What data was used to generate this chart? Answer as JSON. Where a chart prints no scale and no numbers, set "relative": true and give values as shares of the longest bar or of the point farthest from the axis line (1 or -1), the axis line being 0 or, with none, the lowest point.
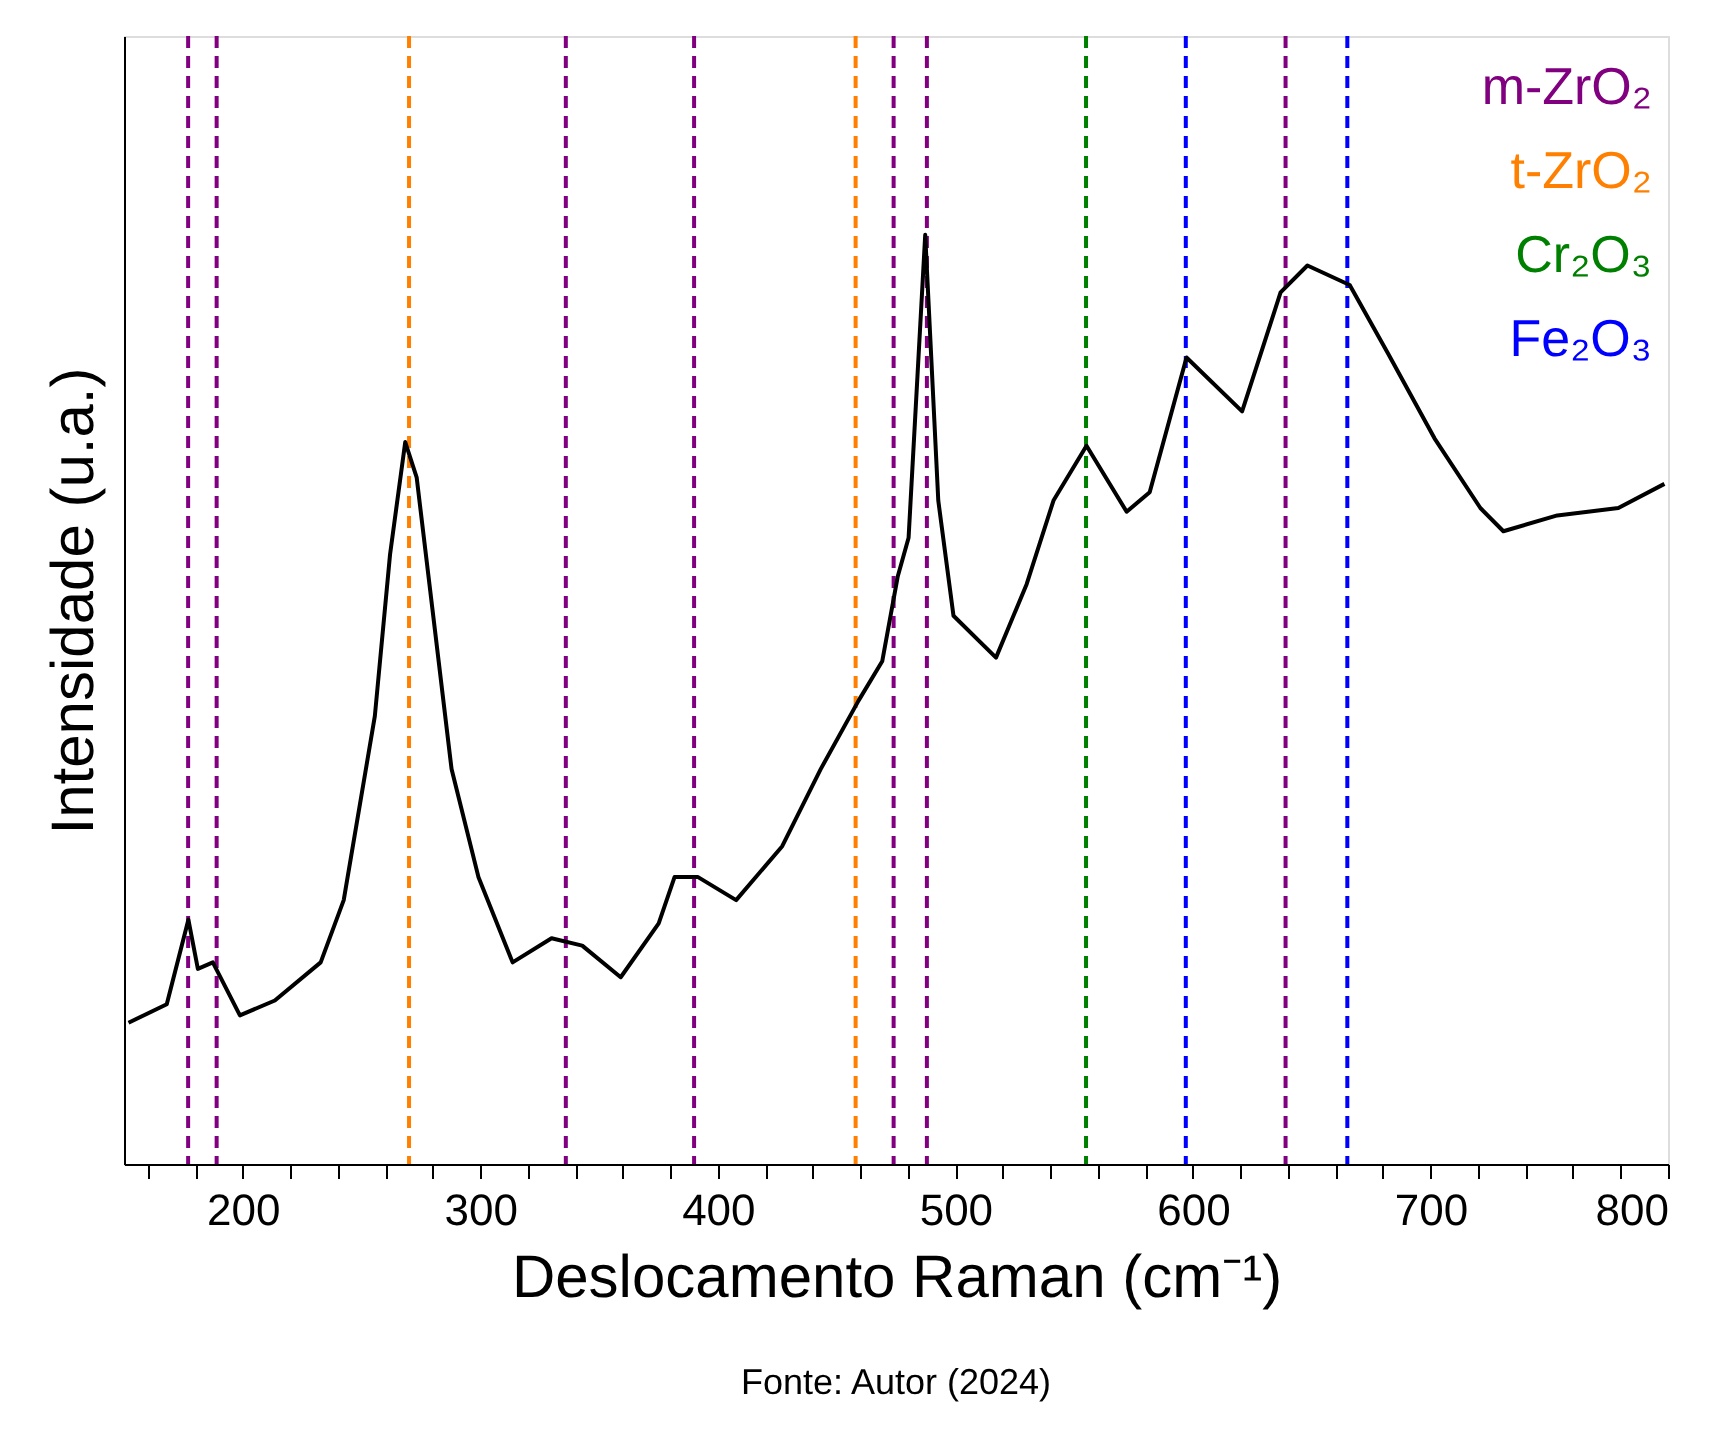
{
  "chart_data": {
    "type": "line",
    "relative": true,
    "xlabel": "Deslocamento Raman (cm⁻¹)",
    "ylabel": "Intensidade (u.a.)",
    "annotations": [
      "Fonte: Autor (2024)"
    ],
    "xlim": [
      150,
      800
    ],
    "xticks": [
      {
        "value": 160,
        "label": null
      },
      {
        "value": 180,
        "label": null
      },
      200,
      {
        "value": 220,
        "label": null
      },
      {
        "value": 240,
        "label": null
      },
      {
        "value": 260,
        "label": null
      },
      {
        "value": 280,
        "label": null
      },
      300,
      {
        "value": 320,
        "label": null
      },
      {
        "value": 340,
        "label": null
      },
      {
        "value": 360,
        "label": null
      },
      {
        "value": 380,
        "label": null
      },
      400,
      {
        "value": 420,
        "label": null
      },
      {
        "value": 440,
        "label": null
      },
      {
        "value": 460,
        "label": null
      },
      {
        "value": 480,
        "label": null
      },
      500,
      {
        "value": 520,
        "label": null
      },
      {
        "value": 540,
        "label": null
      },
      {
        "value": 560,
        "label": null
      },
      {
        "value": 580,
        "label": null
      },
      600,
      {
        "value": 620,
        "label": null
      },
      {
        "value": 640,
        "label": null
      },
      {
        "value": 660,
        "label": null
      },
      {
        "value": 680,
        "label": null
      },
      700,
      {
        "value": 720,
        "label": null
      },
      {
        "value": 740,
        "label": null
      },
      {
        "value": 760,
        "label": null
      },
      {
        "value": 780,
        "label": null
      },
      800
    ],
    "grid": false,
    "legend": "top right",
    "marker": "none",
    "line_style": "solid",
    "x": [
      151.9,
      168.0,
      177.1,
      181.1,
      187.4,
      198.8,
      213.5,
      232.8,
      242.5,
      255.6,
      262.0,
      268.4,
      273.2,
      279.8,
      287.9,
      299.2,
      313.6,
      330.0,
      342.9,
      359.1,
      375.1,
      381.8,
      391.5,
      407.7,
      427.1,
      443.3,
      459.3,
      469.2,
      475.7,
      480.3,
      487.3,
      492.8,
      499.2,
      517.1,
      530.0,
      541.3,
      555.2,
      572.1,
      581.8,
      597.3,
      620.7,
      636.9,
      648.2,
      666.0,
      682.2,
      701.7,
      721.0,
      730.7,
      753.4,
      779.1,
      798.5
    ],
    "series": [
      {
        "color": "#000000",
        "values": [
          0.152,
          0.172,
          0.263,
          0.21,
          0.217,
          0.16,
          0.176,
          0.217,
          0.284,
          0.482,
          0.656,
          0.777,
          0.739,
          0.598,
          0.425,
          0.309,
          0.217,
          0.243,
          0.235,
          0.201,
          0.259,
          0.309,
          0.309,
          0.284,
          0.342,
          0.425,
          0.499,
          0.541,
          0.632,
          0.674,
          1.0,
          0.714,
          0.59,
          0.545,
          0.624,
          0.714,
          0.773,
          0.702,
          0.723,
          0.868,
          0.81,
          0.938,
          0.967,
          0.946,
          0.872,
          0.781,
          0.706,
          0.681,
          0.698,
          0.706,
          0.732
        ]
      }
    ],
    "ref_lines": [
      {
        "axis": "x",
        "value": 177,
        "label": "m-ZrO₂",
        "color": "#800080",
        "line_style": "dashed"
      },
      {
        "axis": "x",
        "value": 189,
        "color": "#800080",
        "line_style": "dashed"
      },
      {
        "axis": "x",
        "value": 336,
        "color": "#800080",
        "line_style": "dashed"
      },
      {
        "axis": "x",
        "value": 390,
        "color": "#800080",
        "line_style": "dashed"
      },
      {
        "axis": "x",
        "value": 474,
        "color": "#800080",
        "line_style": "dashed"
      },
      {
        "axis": "x",
        "value": 488,
        "color": "#800080",
        "line_style": "dashed"
      },
      {
        "axis": "x",
        "value": 639,
        "color": "#800080",
        "line_style": "dashed"
      },
      {
        "axis": "x",
        "value": 270,
        "label": "t-ZrO₂",
        "color": "#ff8000",
        "line_style": "dashed"
      },
      {
        "axis": "x",
        "value": 458,
        "color": "#ff8000",
        "line_style": "dashed"
      },
      {
        "axis": "x",
        "value": 555,
        "label": "Cr₂O₃",
        "color": "#008000",
        "line_style": "dashed"
      },
      {
        "axis": "x",
        "value": 597,
        "label": "Fe₂O₃",
        "color": "#0000ff",
        "line_style": "dashed"
      },
      {
        "axis": "x",
        "value": 665,
        "color": "#0000ff",
        "line_style": "dashed"
      }
    ]
  }
}
